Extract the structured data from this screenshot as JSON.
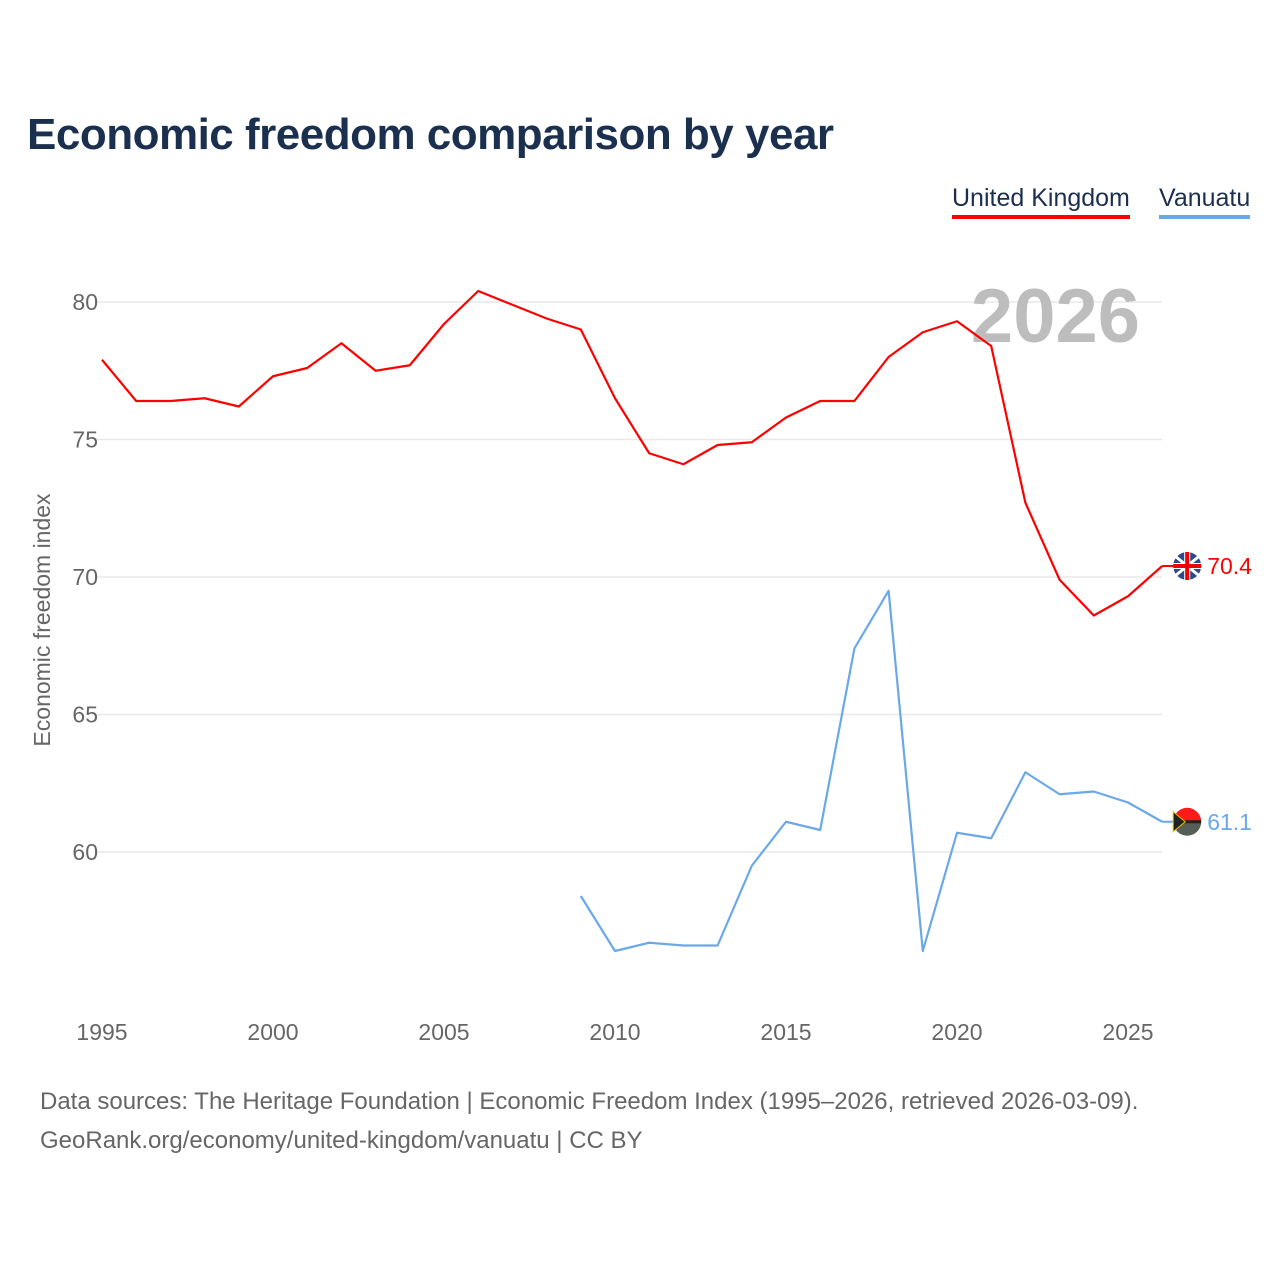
{
  "title": "Economic freedom comparison by year",
  "legend": [
    {
      "label": "United Kingdom",
      "color": "#ff0000"
    },
    {
      "label": "Vanuatu",
      "color": "#6aa8e8"
    }
  ],
  "footer": {
    "line1": "Data sources: The Heritage Foundation | Economic Freedom Index (1995–2026, retrieved 2026-03-09).",
    "line2": "GeoRank.org/economy/united-kingdom/vanuatu | CC BY"
  },
  "chart_data": {
    "type": "line",
    "title": "Economic freedom comparison by year",
    "xlabel": "",
    "ylabel": "Economic freedom index",
    "watermark_year": "2026",
    "xlim": [
      1995,
      2026
    ],
    "ylim": [
      55,
      81
    ],
    "x_ticks": [
      1995,
      2000,
      2005,
      2010,
      2015,
      2020,
      2025
    ],
    "y_ticks": [
      60,
      65,
      70,
      75,
      80
    ],
    "grid": true,
    "legend_position": "top-right",
    "series": [
      {
        "name": "United Kingdom",
        "color": "#ff0000",
        "end_label": "70.4",
        "x": [
          1995,
          1996,
          1997,
          1998,
          1999,
          2000,
          2001,
          2002,
          2003,
          2004,
          2005,
          2006,
          2007,
          2008,
          2009,
          2010,
          2011,
          2012,
          2013,
          2014,
          2015,
          2016,
          2017,
          2018,
          2019,
          2020,
          2021,
          2022,
          2023,
          2024,
          2025,
          2026
        ],
        "values": [
          77.9,
          76.4,
          76.4,
          76.5,
          76.2,
          77.3,
          77.6,
          78.5,
          77.5,
          77.7,
          79.2,
          80.4,
          79.9,
          79.4,
          79.0,
          76.5,
          74.5,
          74.1,
          74.8,
          74.9,
          75.8,
          76.4,
          76.4,
          78.0,
          78.9,
          79.3,
          78.4,
          72.7,
          69.9,
          68.6,
          69.3,
          70.4
        ]
      },
      {
        "name": "Vanuatu",
        "color": "#6aa8e8",
        "end_label": "61.1",
        "x": [
          2009,
          2010,
          2011,
          2012,
          2013,
          2014,
          2015,
          2016,
          2017,
          2018,
          2019,
          2020,
          2021,
          2022,
          2023,
          2024,
          2025,
          2026
        ],
        "values": [
          58.4,
          56.4,
          56.7,
          56.6,
          56.6,
          59.5,
          61.1,
          60.8,
          67.4,
          69.5,
          56.4,
          60.7,
          60.5,
          62.9,
          62.1,
          62.2,
          61.8,
          61.1
        ]
      }
    ]
  }
}
